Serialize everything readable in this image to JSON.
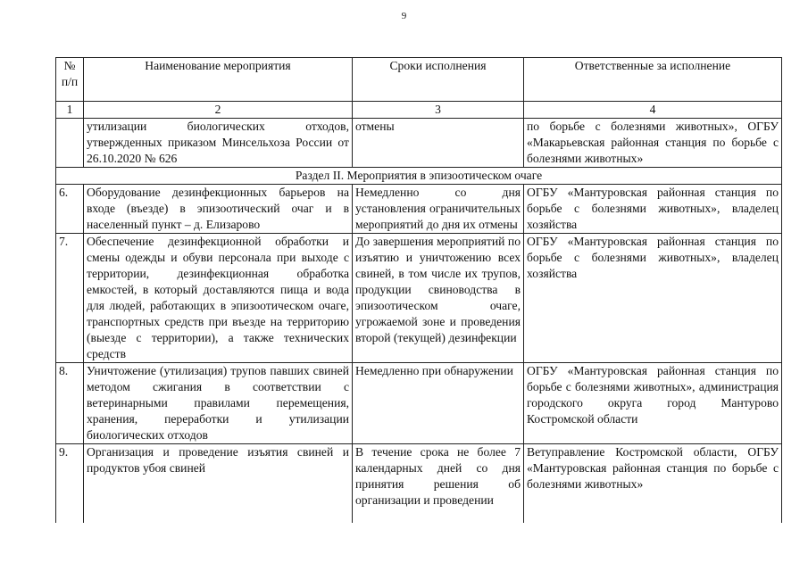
{
  "page_number": "9",
  "headers": [
    "№ п/п",
    "Наименование мероприятия",
    "Сроки исполнения",
    "Ответственные за исполнение"
  ],
  "column_numbers": [
    "1",
    "2",
    "3",
    "4"
  ],
  "continuation_row": {
    "num": "",
    "name": "утилизации биологических отходов, утвержденных приказом Минсельхоза России от 26.10.2020 № 626",
    "term": "отмены",
    "responsible": "по борьбе с болезнями животных», ОГБУ «Макарьевская районная станция по борьбе с болезнями животных»"
  },
  "section_title": "Раздел II. Мероприятия в эпизоотическом очаге",
  "rows": [
    {
      "num": "6.",
      "name": "Оборудование дезинфекционных барьеров на входе (въезде) в эпизоотический очаг и в населенный пункт – д. Елизарово",
      "term": "Немедленно со дня установления ограничительных мероприятий до дня их отмены",
      "responsible": "ОГБУ «Мантуровская районная станция по борьбе с болезнями животных», владелец хозяйства"
    },
    {
      "num": "7.",
      "name": "Обеспечение дезинфекционной обработки и смены одежды и обуви персонала при выходе с территории, дезинфекционная обработка емкостей, в который доставляются пища и вода для людей, работающих в эпизоотическом очаге, транспортных средств при въезде на территорию (выезде с территории), а также технических средств",
      "term": "До завершения мероприятий по изъятию и уничтожению всех свиней, в том числе их трупов, продукции свиноводства в эпизоотическом очаге, угрожаемой зоне и проведения второй (текущей) дезинфекции",
      "responsible": "ОГБУ «Мантуровская районная станция по борьбе с болезнями животных», владелец хозяйства"
    },
    {
      "num": "8.",
      "name": "Уничтожение (утилизация) трупов павших свиней методом сжигания в соответствии с ветеринарными правилами перемещения, хранения, переработки и утилизации биологических отходов",
      "term": "Немедленно при обнаружении",
      "responsible": "ОГБУ «Мантуровская районная станция по борьбе с болезнями животных», администрация городского округа город Мантурово Костромской области"
    },
    {
      "num": "9.",
      "name": "Организация и проведение изъятия свиней и продуктов убоя свиней",
      "term": "В течение срока не более 7 календарных дней со дня принятия решения об организации и проведении",
      "responsible": "Ветуправление Костромской области, ОГБУ «Мантуровская районная станция по борьбе с болезнями животных»"
    }
  ]
}
